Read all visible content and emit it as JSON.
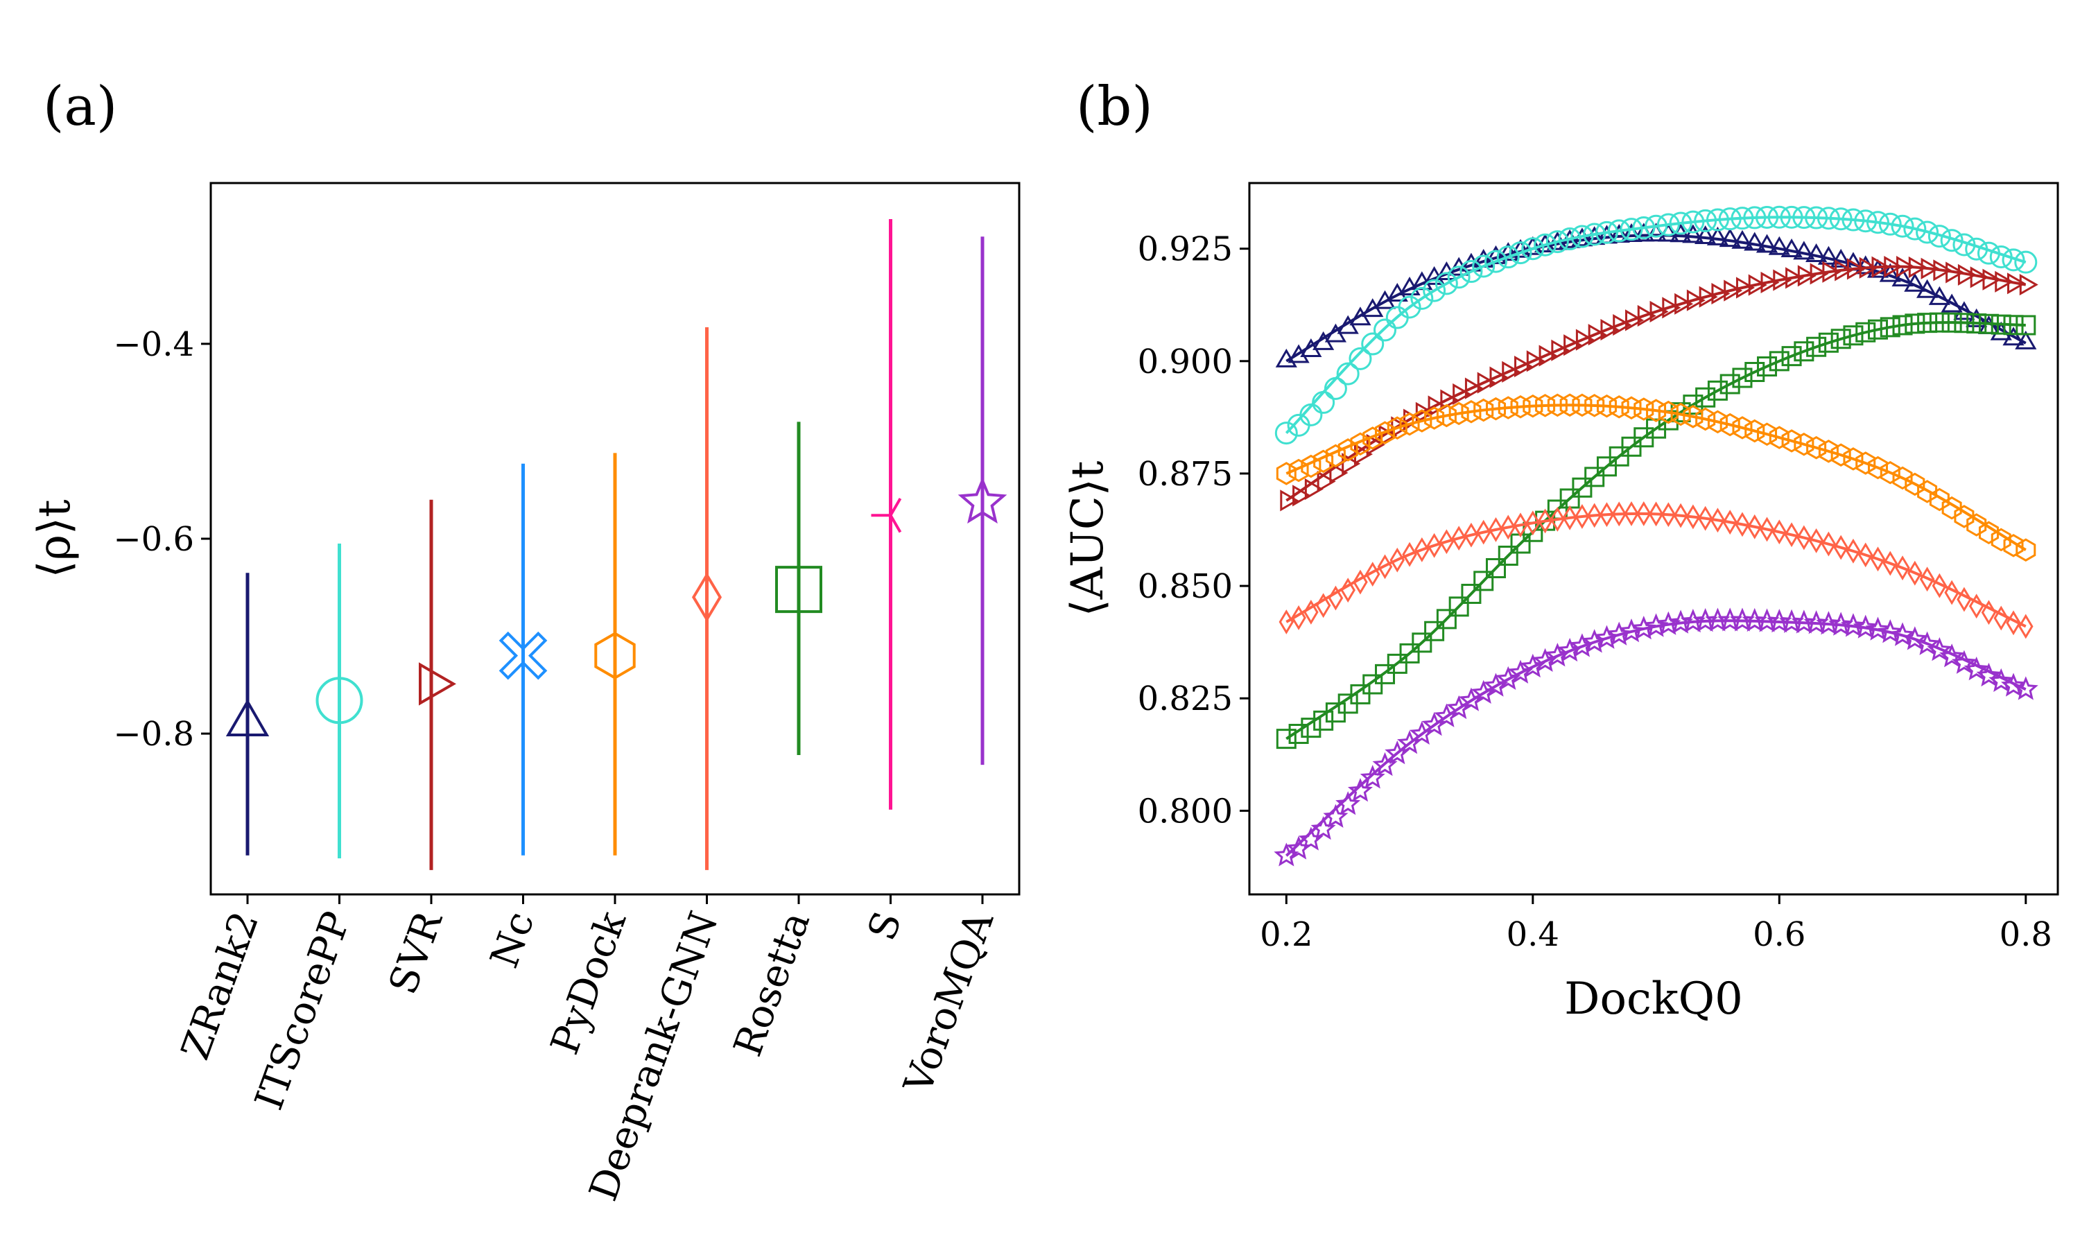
{
  "panel_labels": {
    "a": "(a)",
    "b": "(b)"
  },
  "chart_data": [
    {
      "type": "scatter",
      "title": "",
      "xlabel": "",
      "ylabel": "⟨ρ⟩t",
      "ylim": [
        -0.965,
        -0.235
      ],
      "yticks": [
        -0.4,
        -0.6,
        -0.8
      ],
      "ytick_labels": [
        "−0.4",
        "−0.6",
        "−0.8"
      ],
      "grid": false,
      "legend": "none",
      "categories": [
        "ZRank2",
        "ITScorePP",
        "SVR",
        "Nc",
        "PyDock",
        "Deeprank-GNN",
        "Rosetta",
        "S",
        "VoroMQA"
      ],
      "points": [
        {
          "label": "ZRank2",
          "mean": -0.79,
          "low": -0.925,
          "high": -0.635,
          "color": "#191970",
          "marker": "triangle-up"
        },
        {
          "label": "ITScorePP",
          "mean": -0.766,
          "low": -0.928,
          "high": -0.605,
          "color": "#40e0d0",
          "marker": "circle"
        },
        {
          "label": "SVR",
          "mean": -0.749,
          "low": -0.94,
          "high": -0.56,
          "color": "#b22222",
          "marker": "triangle-right"
        },
        {
          "label": "Nc",
          "mean": -0.72,
          "low": -0.925,
          "high": -0.523,
          "color": "#1e90ff",
          "marker": "x-filled"
        },
        {
          "label": "PyDock",
          "mean": -0.72,
          "low": -0.925,
          "high": -0.512,
          "color": "#ff8c00",
          "marker": "hexagon"
        },
        {
          "label": "Deeprank-GNN",
          "mean": -0.66,
          "low": -0.94,
          "high": -0.383,
          "color": "#ff6347",
          "marker": "thin-diamond"
        },
        {
          "label": "Rosetta",
          "mean": -0.652,
          "low": -0.822,
          "high": -0.48,
          "color": "#228b22",
          "marker": "square"
        },
        {
          "label": "S",
          "mean": -0.576,
          "low": -0.878,
          "high": -0.272,
          "color": "#ff1493",
          "marker": "tri-left"
        },
        {
          "label": "VoroMQA",
          "mean": -0.563,
          "low": -0.832,
          "high": -0.29,
          "color": "#9932cc",
          "marker": "star"
        }
      ]
    },
    {
      "type": "line",
      "title": "",
      "xlabel": "DockQ0",
      "ylabel": "⟨AUC⟩t",
      "xlim": [
        0.17,
        0.826
      ],
      "ylim": [
        0.7814,
        0.9396
      ],
      "xticks": [
        0.2,
        0.4,
        0.6,
        0.8
      ],
      "xtick_labels": [
        "0.2",
        "0.4",
        "0.6",
        "0.8"
      ],
      "yticks": [
        0.8,
        0.825,
        0.85,
        0.875,
        0.9,
        0.925
      ],
      "ytick_labels": [
        "0.800",
        "0.825",
        "0.850",
        "0.875",
        "0.900",
        "0.925"
      ],
      "grid": false,
      "legend": "none",
      "x": [
        0.2,
        0.3,
        0.4,
        0.5,
        0.6,
        0.7,
        0.8
      ],
      "series": [
        {
          "color": "#191970",
          "marker": "triangle-up",
          "values": [
            0.9,
            0.916,
            0.925,
            0.928,
            0.925,
            0.918,
            0.904
          ]
        },
        {
          "color": "#40e0d0",
          "marker": "circle",
          "values": [
            0.884,
            0.912,
            0.925,
            0.93,
            0.932,
            0.93,
            0.922
          ]
        },
        {
          "color": "#b22222",
          "marker": "triangle-right",
          "values": [
            0.869,
            0.887,
            0.9,
            0.911,
            0.918,
            0.921,
            0.917
          ]
        },
        {
          "color": "#228b22",
          "marker": "square",
          "values": [
            0.816,
            0.835,
            0.862,
            0.885,
            0.9,
            0.908,
            0.908
          ]
        },
        {
          "color": "#ff8c00",
          "marker": "hexagon",
          "values": [
            0.875,
            0.886,
            0.89,
            0.889,
            0.883,
            0.874,
            0.858
          ]
        },
        {
          "color": "#ff6347",
          "marker": "thin-diamond",
          "values": [
            0.842,
            0.857,
            0.864,
            0.866,
            0.862,
            0.854,
            0.841
          ]
        },
        {
          "color": "#9932cc",
          "marker": "star",
          "values": [
            0.79,
            0.815,
            0.832,
            0.841,
            0.842,
            0.839,
            0.827
          ]
        }
      ]
    }
  ]
}
